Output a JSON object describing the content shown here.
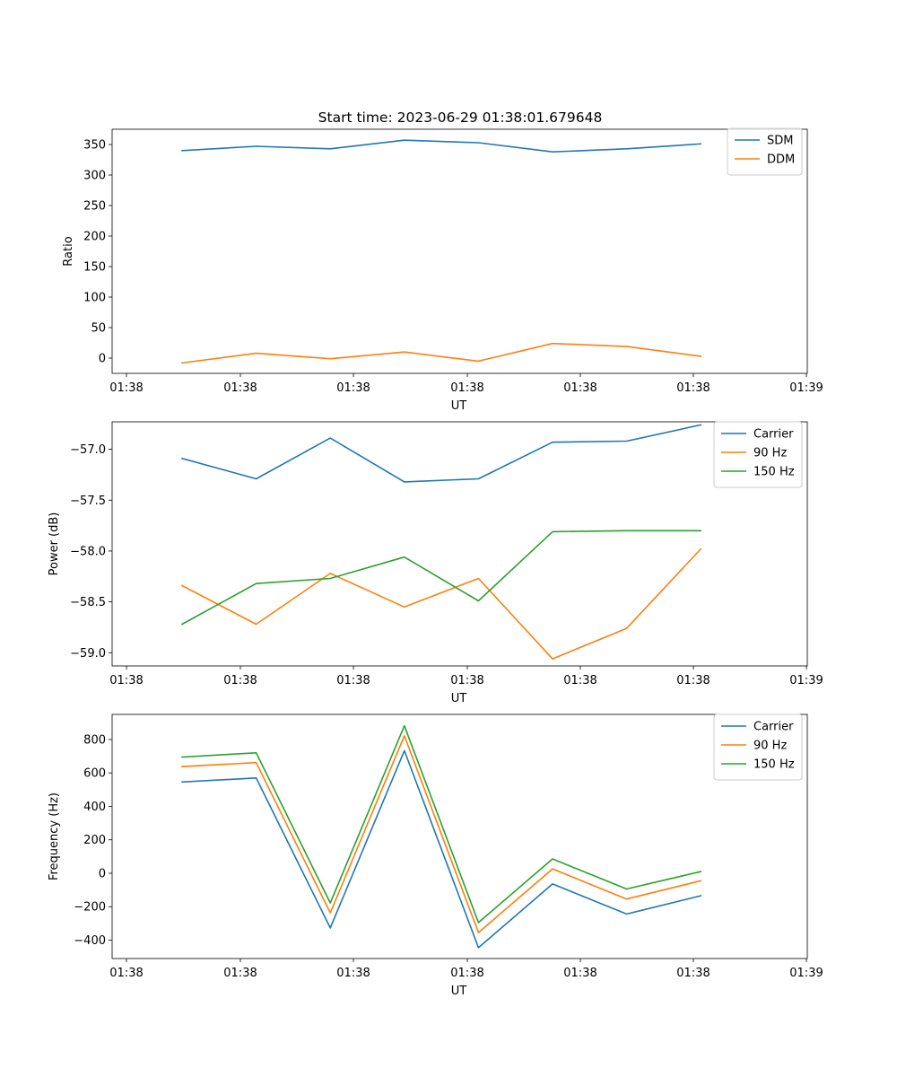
{
  "figure": {
    "title": "Start time: 2023-06-29 01:38:01.679648"
  },
  "chart_data": [
    {
      "type": "line",
      "title": "Start time: 2023-06-29 01:38:01.679648",
      "xlabel": "UT",
      "ylabel": "Ratio",
      "x_ticks": [
        "01:38",
        "01:38",
        "01:38",
        "01:38",
        "01:38",
        "01:38",
        "01:38",
        "01:39"
      ],
      "x_index": [
        1,
        2,
        3,
        4,
        5,
        6,
        7,
        8
      ],
      "xlim": [
        -0.125,
        9.125
      ],
      "ylim": [
        -25,
        375
      ],
      "y_ticks": [
        0,
        50,
        100,
        150,
        200,
        250,
        300,
        350
      ],
      "y_tick_labels": [
        "0",
        "50",
        "100",
        "150",
        "200",
        "250",
        "300",
        "350"
      ],
      "legend_position": "upper right",
      "series": [
        {
          "name": "SDM",
          "color": "#1f77b4",
          "values": [
            340,
            347,
            343,
            357,
            353,
            338,
            343,
            351
          ]
        },
        {
          "name": "DDM",
          "color": "#ff7f0e",
          "values": [
            -8,
            8,
            -1,
            10,
            -5,
            24,
            19,
            3
          ]
        }
      ]
    },
    {
      "type": "line",
      "xlabel": "UT",
      "ylabel": "Power (dB)",
      "x_ticks": [
        "01:38",
        "01:38",
        "01:38",
        "01:38",
        "01:38",
        "01:38",
        "01:38",
        "01:39"
      ],
      "x_index": [
        1,
        2,
        3,
        4,
        5,
        6,
        7,
        8
      ],
      "xlim": [
        -0.125,
        9.125
      ],
      "ylim": [
        -59.13,
        -56.73
      ],
      "y_ticks": [
        -59.0,
        -58.5,
        -58.0,
        -57.5,
        -57.0
      ],
      "y_tick_labels": [
        "−59.0",
        "−58.5",
        "−58.0",
        "−57.5",
        "−57.0"
      ],
      "legend_position": "upper right",
      "series": [
        {
          "name": "Carrier",
          "color": "#1f77b4",
          "values": [
            -57.09,
            -57.29,
            -56.89,
            -57.32,
            -57.29,
            -56.93,
            -56.92,
            -56.76
          ]
        },
        {
          "name": "90 Hz",
          "color": "#ff7f0e",
          "values": [
            -58.34,
            -58.72,
            -58.22,
            -58.55,
            -58.27,
            -59.06,
            -58.76,
            -57.98
          ]
        },
        {
          "name": "150 Hz",
          "color": "#2ca02c",
          "values": [
            -58.72,
            -58.32,
            -58.27,
            -58.06,
            -58.49,
            -57.81,
            -57.8,
            -57.8
          ]
        }
      ]
    },
    {
      "type": "line",
      "xlabel": "UT",
      "ylabel": "Frequency (Hz)",
      "x_ticks": [
        "01:38",
        "01:38",
        "01:38",
        "01:38",
        "01:38",
        "01:38",
        "01:38",
        "01:39"
      ],
      "x_index": [
        1,
        2,
        3,
        4,
        5,
        6,
        7,
        8
      ],
      "xlim": [
        -0.125,
        9.125
      ],
      "ylim": [
        -510,
        950
      ],
      "y_ticks": [
        -400,
        -200,
        0,
        200,
        400,
        600,
        800
      ],
      "y_tick_labels": [
        "−400",
        "−200",
        "0",
        "200",
        "400",
        "600",
        "800"
      ],
      "legend_position": "upper right",
      "series": [
        {
          "name": "Carrier",
          "color": "#1f77b4",
          "values": [
            546,
            570,
            -327,
            733,
            -445,
            -64,
            -244,
            -135
          ]
        },
        {
          "name": "90 Hz",
          "color": "#ff7f0e",
          "values": [
            638,
            662,
            -237,
            822,
            -355,
            26,
            -154,
            -45
          ]
        },
        {
          "name": "150 Hz",
          "color": "#2ca02c",
          "values": [
            695,
            720,
            -178,
            882,
            -295,
            86,
            -94,
            10
          ]
        }
      ]
    }
  ]
}
